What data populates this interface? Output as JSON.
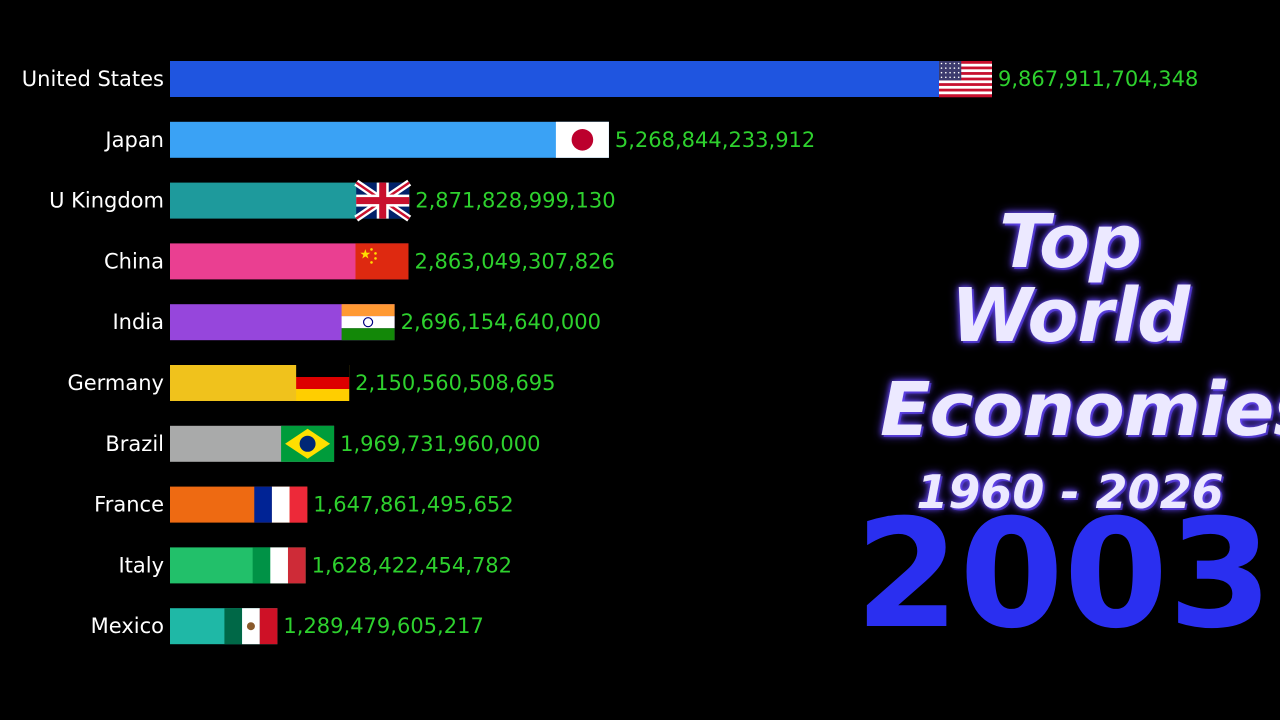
{
  "title": {
    "line1": "Top World",
    "line2": "Economies",
    "range": "1960 - 2026"
  },
  "year": "2003",
  "chart_data": {
    "type": "bar",
    "orientation": "horizontal",
    "title": "Top World Economies",
    "subtitle": "1960 - 2026",
    "year": "2003",
    "categories": [
      "United States",
      "Japan",
      "U Kingdom",
      "China",
      "India",
      "Germany",
      "Brazil",
      "France",
      "Italy",
      "Mexico"
    ],
    "values": [
      9867911704348,
      5268844233912,
      2871828999130,
      2863049307826,
      2696154640000,
      2150560508695,
      1969731960000,
      1647861495652,
      1628422454782,
      1289479605217
    ],
    "value_labels": [
      "9,867,911,704,348",
      "5,268,844,233,912",
      "2,871,828,999,130",
      "2,863,049,307,826",
      "2,696,154,640,000",
      "2,150,560,508,695",
      "1,969,731,960,000",
      "1,647,861,495,652",
      "1,628,422,454,782",
      "1,289,479,605,217"
    ],
    "bar_colors": [
      "#1f55e0",
      "#3aa2f5",
      "#1e9a9c",
      "#ea3f91",
      "#9646dc",
      "#f0c21c",
      "#a9aaaa",
      "#ee6a12",
      "#22c06a",
      "#1fb8a6"
    ],
    "flags": [
      "us-flag",
      "japan-flag",
      "uk-flag",
      "china-flag",
      "india-flag",
      "germany-flag",
      "brazil-flag",
      "france-flag",
      "italy-flag",
      "mexico-flag"
    ],
    "value_color": "#2ed12e",
    "grid": false,
    "legend": "none"
  }
}
